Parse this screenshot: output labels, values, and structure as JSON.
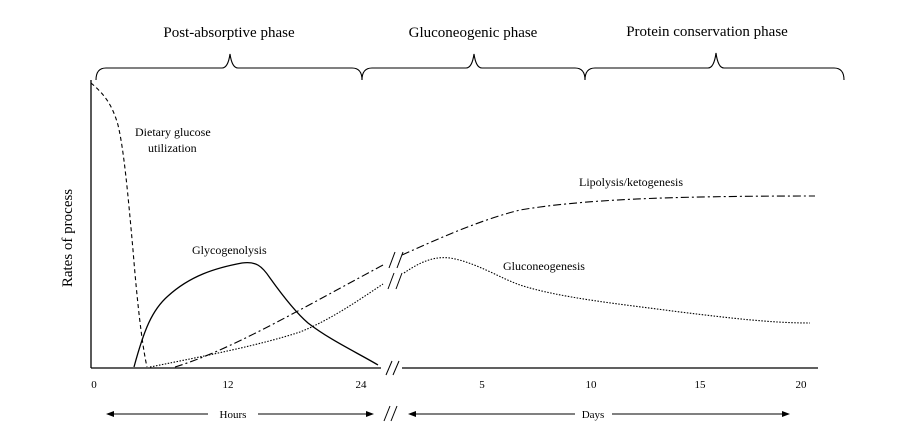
{
  "phases": [
    {
      "label": "Post-absorptive phase"
    },
    {
      "label": "Gluconeogenic phase"
    },
    {
      "label": "Protein conservation phase"
    }
  ],
  "y_axis_label": "Rates of process",
  "x_ticks_hours": [
    "0",
    "12",
    "24"
  ],
  "x_ticks_days": [
    "5",
    "10",
    "15",
    "20"
  ],
  "curves": {
    "dietary_glucose": "Dietary glucose",
    "dietary_glucose_line2": "utilization",
    "glycogenolysis": "Glycogenolysis",
    "lipolysis": "Lipolysis/ketogenesis",
    "gluconeogenesis": "Gluconeogenesis"
  },
  "scale": {
    "hours": "Hours",
    "days": "Days",
    "break_mark": "//"
  }
}
